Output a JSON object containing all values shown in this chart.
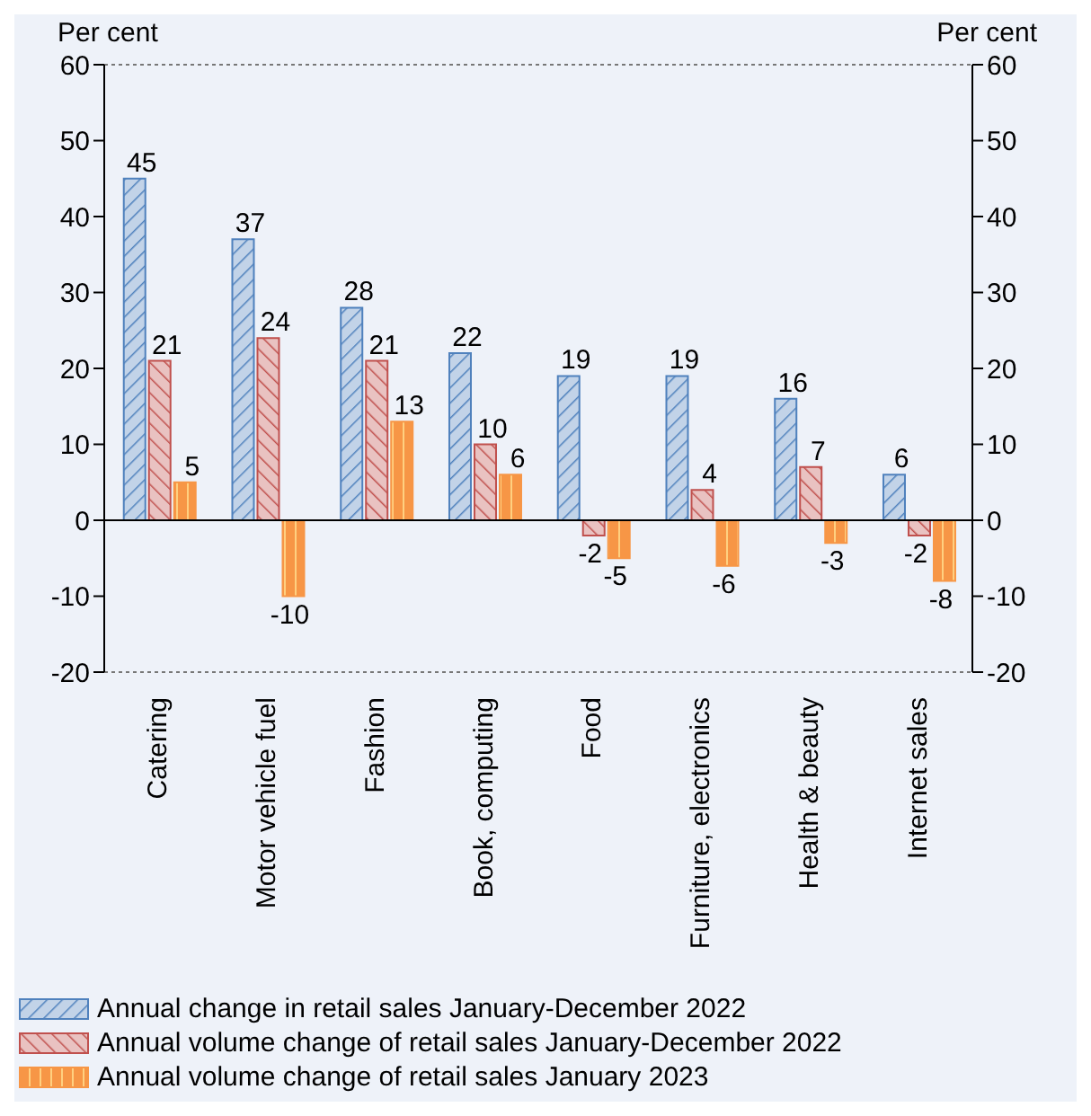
{
  "chart_data": {
    "type": "bar",
    "ylabel": "Per cent",
    "y2label": "Per cent",
    "categories": [
      "Catering",
      "Motor vehicle fuel",
      "Fashion",
      "Book, computing",
      "Food",
      "Furniture, electronics",
      "Health & beauty",
      "Internet sales"
    ],
    "series": [
      {
        "name": "Annual change in retail sales January-December 2022",
        "color": "#4f81bd",
        "values": [
          45,
          37,
          28,
          22,
          19,
          19,
          16,
          6
        ]
      },
      {
        "name": "Annual volume change of retail sales January-December 2022",
        "color": "#c0504d",
        "values": [
          21,
          24,
          21,
          10,
          -2,
          4,
          7,
          -2
        ]
      },
      {
        "name": "Annual volume change of retail sales January 2023",
        "color": "#f79646",
        "values": [
          5,
          -10,
          13,
          6,
          -5,
          -6,
          -3,
          -8
        ]
      }
    ],
    "ylim": [
      -20,
      60
    ],
    "yticks": [
      -20,
      -10,
      0,
      10,
      20,
      30,
      40,
      50,
      60
    ],
    "y2lim": [
      -20,
      60
    ],
    "y2ticks": [
      -20,
      -10,
      0,
      10,
      20,
      30,
      40,
      50,
      60
    ],
    "grid": "y",
    "legend": "bottom",
    "data_labels": true
  }
}
